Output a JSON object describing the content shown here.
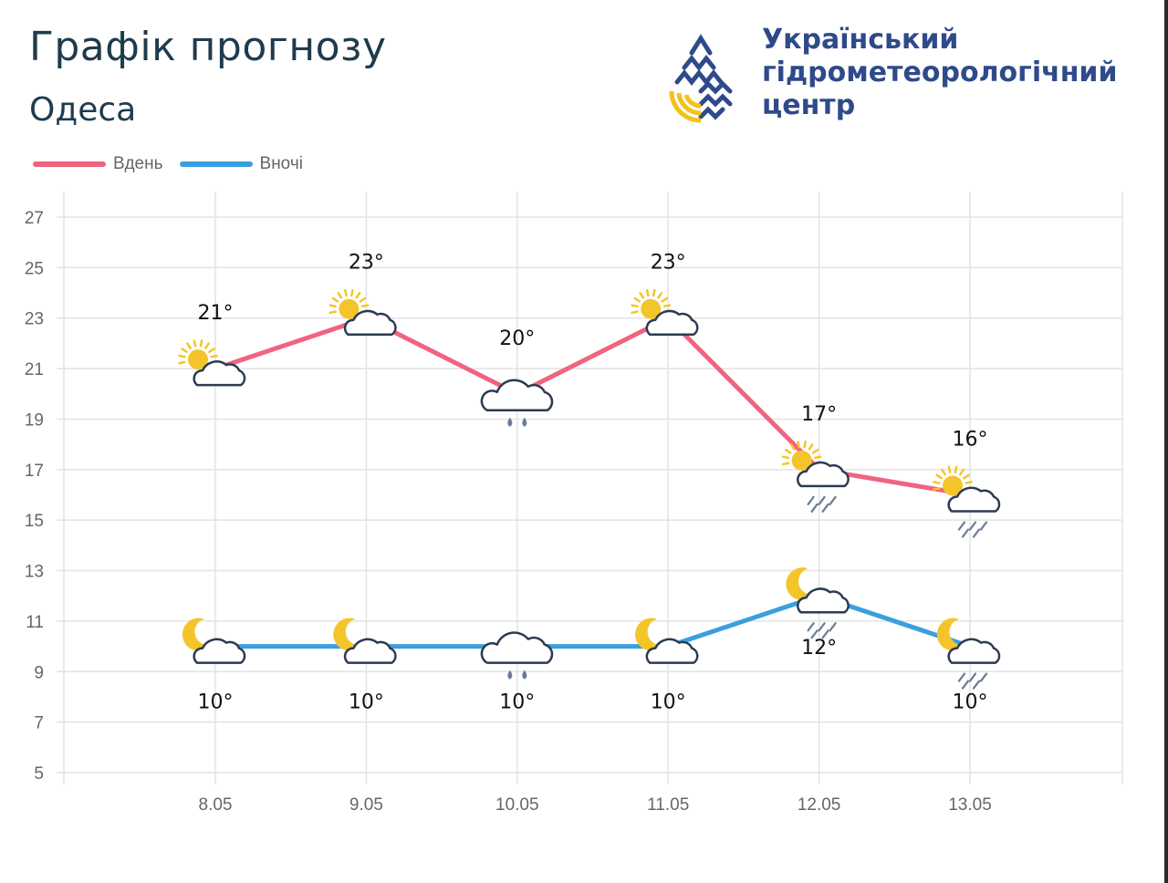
{
  "header": {
    "title": "Графік прогнозу",
    "city": "Одеса"
  },
  "org": {
    "name_lines": [
      "Український",
      "гідрометеорологічний",
      "центр"
    ],
    "logo_icon": "water-drop-sun-logo"
  },
  "colors": {
    "day": "#f0647f",
    "night": "#3a9fe0",
    "grid": "#e3e3e3",
    "sun": "#f4c52a",
    "cloud_stroke": "#2d3a52",
    "rain": "#6b7b94",
    "org_blue": "#2f4a8a",
    "org_yellow": "#f2c21b"
  },
  "chart_data": {
    "type": "line",
    "title": "",
    "xlabel": "",
    "ylabel": "",
    "categories": [
      "8.05",
      "9.05",
      "10.05",
      "11.05",
      "12.05",
      "13.05"
    ],
    "ylim": [
      5,
      27
    ],
    "yticks": [
      5,
      7,
      9,
      11,
      13,
      15,
      17,
      19,
      21,
      23,
      25,
      27
    ],
    "grid": true,
    "legend": "top-left",
    "series": [
      {
        "name": "Вдень",
        "key": "day",
        "values": [
          21,
          23,
          20,
          23,
          17,
          16
        ],
        "labels": [
          "21°",
          "23°",
          "20°",
          "23°",
          "17°",
          "16°"
        ],
        "icons": [
          "partly-cloudy-day-icon",
          "partly-cloudy-day-icon",
          "rain-cloud-icon",
          "partly-cloudy-day-icon",
          "partly-cloudy-day-rain-icon",
          "partly-cloudy-day-rain-icon"
        ]
      },
      {
        "name": "Вночі",
        "key": "night",
        "values": [
          10,
          10,
          10,
          10,
          12,
          10
        ],
        "labels": [
          "10°",
          "10°",
          "10°",
          "10°",
          "12°",
          "10°"
        ],
        "icons": [
          "partly-cloudy-night-icon",
          "partly-cloudy-night-icon",
          "rain-cloud-icon",
          "partly-cloudy-night-icon",
          "partly-cloudy-night-rain-icon",
          "partly-cloudy-night-rain-icon"
        ]
      }
    ]
  }
}
